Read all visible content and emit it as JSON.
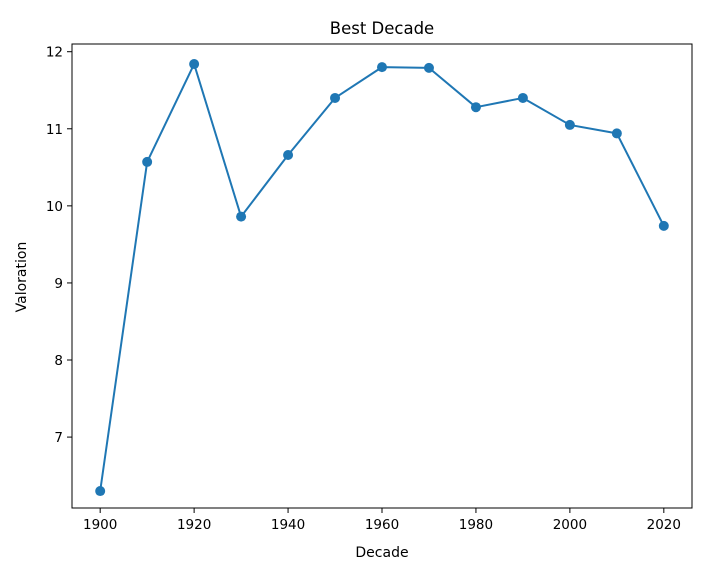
{
  "chart_data": {
    "type": "line",
    "title": "Best Decade",
    "xlabel": "Decade",
    "ylabel": "Valoration",
    "xlim": [
      1894,
      2026
    ],
    "ylim": [
      6.08,
      12.1
    ],
    "xticks": [
      1900,
      1920,
      1940,
      1960,
      1980,
      2000,
      2020
    ],
    "yticks": [
      7,
      8,
      9,
      10,
      11,
      12
    ],
    "grid": false,
    "legend": "none",
    "color": "#1f77b4",
    "series": [
      {
        "x": [
          1900,
          1910,
          1920,
          1930,
          1940,
          1950,
          1960,
          1970,
          1980,
          1990,
          2000,
          2010,
          2020
        ],
        "values": [
          6.3,
          10.57,
          11.84,
          9.86,
          10.66,
          11.4,
          11.8,
          11.79,
          11.28,
          11.4,
          11.05,
          10.94,
          9.74
        ]
      }
    ]
  }
}
